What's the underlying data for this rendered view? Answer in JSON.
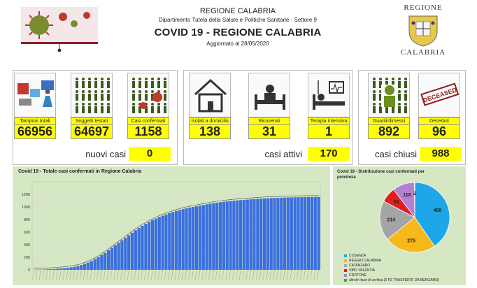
{
  "header": {
    "region": "REGIONE CALABRIA",
    "department": "Dipartimento Tutela della Salute e Politiche Sanitarie - Settore 9",
    "title": "COVID 19 - REGIONE CALABRIA",
    "updated": "Aggiornato al  28/05/2020"
  },
  "crest": {
    "top": "REGIONE",
    "bottom": "CALABRIA"
  },
  "cards": [
    {
      "label": "Tamponi totali",
      "value": "66956",
      "icon": "lab-computer-icon"
    },
    {
      "label": "Soggetti testati",
      "value": "64697",
      "icon": "people-grid-icon"
    },
    {
      "label": "Casi confermati",
      "value": "1158",
      "icon": "infected-people-icon"
    },
    {
      "label": "Isolati a domicilio",
      "value": "138",
      "icon": "house-icon"
    },
    {
      "label": "Ricoverati",
      "value": "31",
      "icon": "hospital-bed-icon"
    },
    {
      "label": "Terapia intensiva",
      "value": "1",
      "icon": "intensive-care-icon"
    },
    {
      "label": "Guariti/dimessi",
      "value": "892",
      "icon": "recovered-people-icon"
    },
    {
      "label": "Deceduti",
      "value": "96",
      "icon": "deceased-stamp-icon"
    }
  ],
  "summary": {
    "new_label": "nuovi casi",
    "new_value": "0",
    "active_label": "casi attivi",
    "active_value": "170",
    "closed_label": "casi chiusi",
    "closed_value": "988"
  },
  "stamp_text": "DECEASED",
  "chart_data": [
    {
      "type": "bar",
      "title": "Covid 19 - Totale casi confermati in Regione Calabria",
      "ylim": [
        0,
        1400
      ],
      "yticks": [
        0,
        200,
        400,
        600,
        800,
        1000,
        1200
      ],
      "grid": true,
      "color": "#3b6fe0",
      "values": [
        1,
        2,
        3,
        5,
        8,
        11,
        14,
        18,
        22,
        26,
        32,
        40,
        48,
        60,
        75,
        95,
        115,
        140,
        170,
        200,
        235,
        270,
        310,
        350,
        390,
        430,
        470,
        510,
        550,
        590,
        630,
        665,
        700,
        730,
        760,
        790,
        815,
        840,
        860,
        880,
        900,
        920,
        935,
        950,
        965,
        978,
        990,
        1000,
        1010,
        1020,
        1030,
        1040,
        1050,
        1060,
        1068,
        1075,
        1082,
        1088,
        1094,
        1100,
        1104,
        1108,
        1112,
        1116,
        1120,
        1124,
        1128,
        1132,
        1135,
        1138,
        1140,
        1142,
        1144,
        1146,
        1148,
        1150,
        1151,
        1152,
        1153,
        1154,
        1155,
        1156,
        1157,
        1158,
        1158
      ]
    },
    {
      "type": "pie",
      "title": "Covid 19 - Distribuzione casi confermati per provincia",
      "slices": [
        {
          "name": "COSENZA",
          "value": 468,
          "color": "#1ea7e8"
        },
        {
          "name": "REGGIO CALABRIA",
          "value": 275,
          "color": "#f7b81c"
        },
        {
          "name": "CATANZARO",
          "value": 214,
          "color": "#a5a5a5"
        },
        {
          "name": "VIBO VALENTIA",
          "value": 81,
          "color": "#e21d1d"
        },
        {
          "name": "CROTONE",
          "value": 118,
          "color": "#b67fd6"
        },
        {
          "name": "altro/in fase di verifica (2 PZ TRASFERITI DA BERGAMO)",
          "value": 2,
          "color": "#2fae3a"
        }
      ]
    }
  ]
}
